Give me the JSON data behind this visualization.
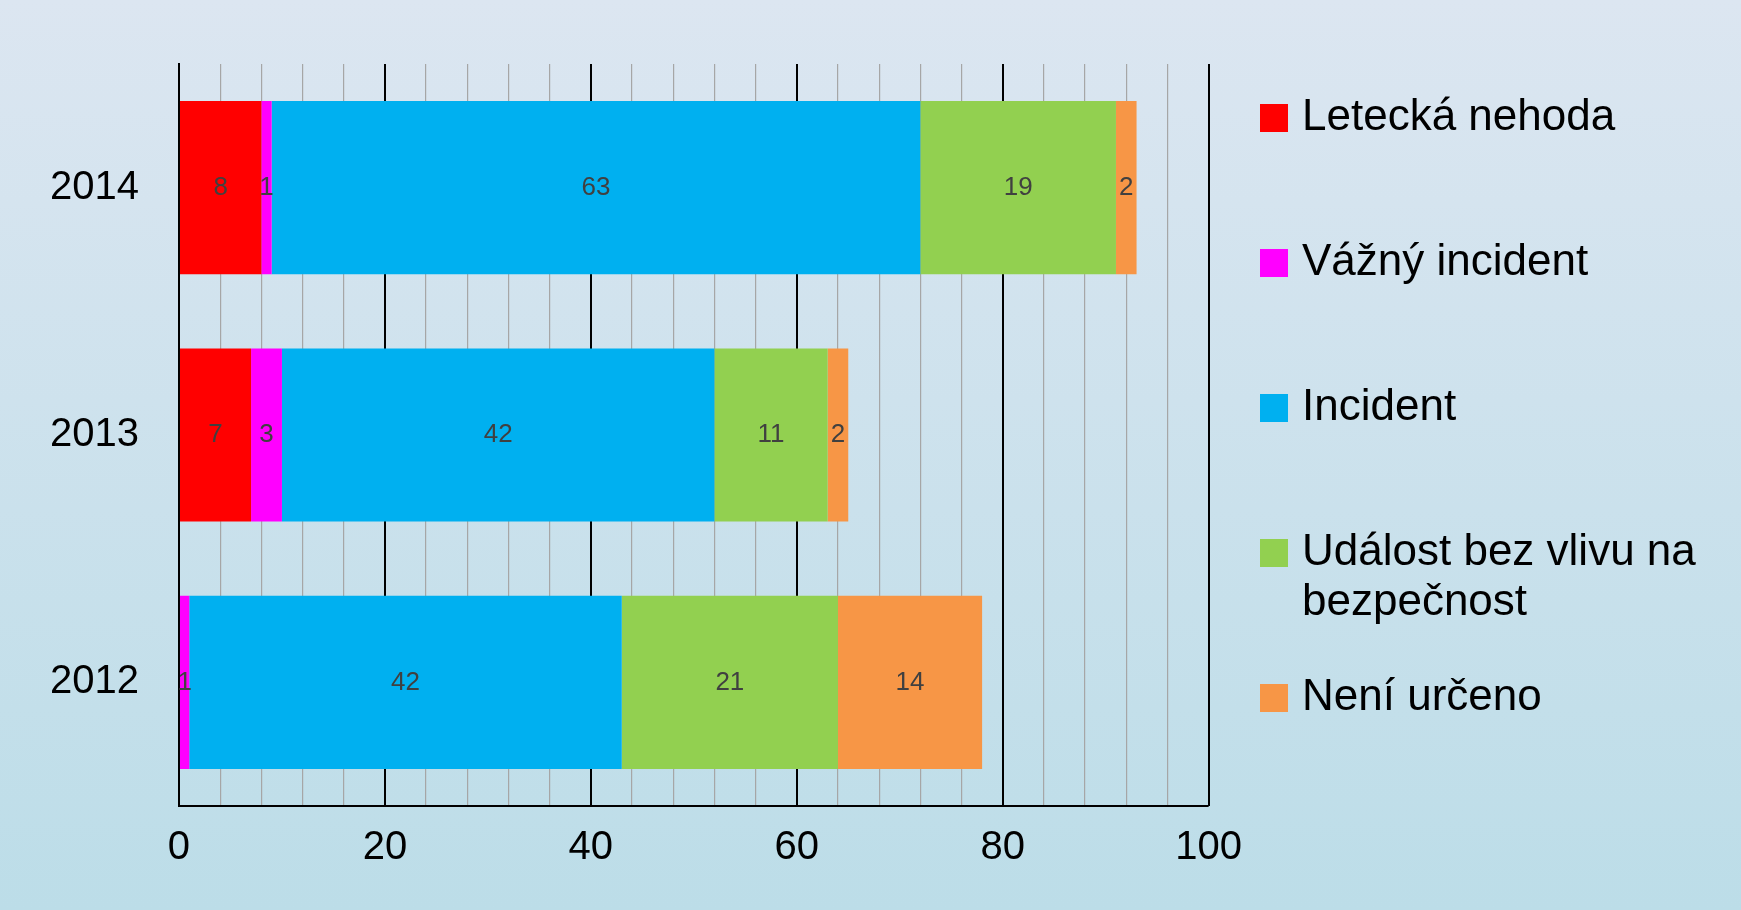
{
  "chart_data": {
    "type": "bar",
    "orientation": "horizontal",
    "stacked": true,
    "categories": [
      "2014",
      "2013",
      "2012"
    ],
    "series": [
      {
        "name": "Letecká nehoda",
        "color": "#ff0000",
        "values": [
          8,
          7,
          null
        ]
      },
      {
        "name": "Vážný incident",
        "color": "#ff00ff",
        "values": [
          1,
          3,
          1
        ]
      },
      {
        "name": "Incident",
        "color": "#00b0f0",
        "values": [
          63,
          42,
          42
        ]
      },
      {
        "name": "Událost bez vlivu na bezpečnost",
        "color": "#92d050",
        "values": [
          19,
          11,
          21
        ]
      },
      {
        "name": "Není určeno",
        "color": "#f79646",
        "values": [
          2,
          2,
          14
        ]
      }
    ],
    "xlim": [
      0,
      100
    ],
    "xticks": [
      0,
      {
        "value": 4,
        "label": null
      },
      {
        "value": 8,
        "label": null
      },
      {
        "value": 12,
        "label": null
      },
      {
        "value": 16,
        "label": null
      },
      20,
      {
        "value": 24,
        "label": null
      },
      {
        "value": 28,
        "label": null
      },
      {
        "value": 32,
        "label": null
      },
      {
        "value": 36,
        "label": null
      },
      40,
      {
        "value": 44,
        "label": null
      },
      {
        "value": 48,
        "label": null
      },
      {
        "value": 52,
        "label": null
      },
      {
        "value": 56,
        "label": null
      },
      60,
      {
        "value": 64,
        "label": null
      },
      {
        "value": 68,
        "label": null
      },
      {
        "value": 72,
        "label": null
      },
      {
        "value": 76,
        "label": null
      },
      80,
      {
        "value": 84,
        "label": null
      },
      {
        "value": 88,
        "label": null
      },
      {
        "value": 92,
        "label": null
      },
      {
        "value": 96,
        "label": null
      },
      100
    ],
    "grid": "x",
    "legend": "right",
    "data_labels": true
  }
}
